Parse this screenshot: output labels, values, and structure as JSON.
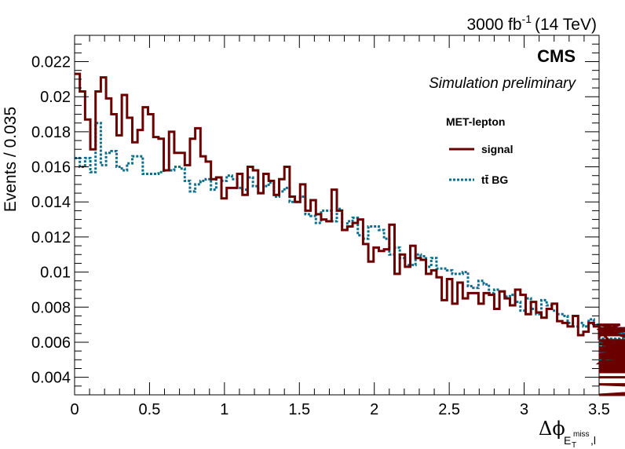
{
  "chart_data": {
    "type": "line",
    "style": "step-histogram",
    "header": {
      "lumi_prefix": "3000 fb",
      "lumi_exp": "-1",
      "energy": "(14 TeV)",
      "experiment": "CMS",
      "status": "Simulation preliminary"
    },
    "ylabel": "Events / 0.035",
    "xlabel": {
      "delta_phi": "Δϕ",
      "sub_main": "E",
      "sub_sub": "T",
      "sub_sup": "miss",
      "sub_tail": ",l"
    },
    "xlim": [
      0,
      3.5
    ],
    "ylim": [
      0.003,
      0.0235
    ],
    "x_ticks": [
      0,
      0.5,
      1,
      1.5,
      2,
      2.5,
      3,
      3.5
    ],
    "x_tick_labels": [
      "0",
      "0.5",
      "1",
      "1.5",
      "2",
      "2.5",
      "3",
      "3.5"
    ],
    "y_ticks": [
      0.004,
      0.006,
      0.008,
      0.01,
      0.012,
      0.014,
      0.016,
      0.018,
      0.02,
      0.022
    ],
    "y_tick_labels": [
      "0.004",
      "0.006",
      "0.008",
      "0.01",
      "0.012",
      "0.014",
      "0.016",
      "0.018",
      "0.02",
      "0.022"
    ],
    "bin_width": 0.035,
    "grid": false,
    "legend": {
      "title": "MET-lepton",
      "position": "top-right",
      "entries": [
        {
          "label": "signal",
          "color": "#6b0000",
          "dash": "solid"
        },
        {
          "label": "tt̄ BG",
          "color": "#0a6e8c",
          "dash": "dotted"
        }
      ]
    },
    "series": [
      {
        "name": "signal",
        "color": "#6b0000",
        "values": [
          0.0213,
          0.0203,
          0.0187,
          0.017,
          0.0203,
          0.0211,
          0.0199,
          0.019,
          0.0178,
          0.0201,
          0.0188,
          0.0174,
          0.0181,
          0.0194,
          0.019,
          0.0177,
          0.0176,
          0.0158,
          0.018,
          0.0168,
          0.0168,
          0.0161,
          0.0176,
          0.0182,
          0.0166,
          0.0163,
          0.0153,
          0.0154,
          0.0142,
          0.0148,
          0.0148,
          0.0156,
          0.0144,
          0.016,
          0.0158,
          0.0145,
          0.0156,
          0.0152,
          0.0144,
          0.0153,
          0.016,
          0.0143,
          0.014,
          0.015,
          0.0135,
          0.0141,
          0.0133,
          0.013,
          0.0129,
          0.0147,
          0.0135,
          0.0124,
          0.0126,
          0.0128,
          0.013,
          0.0116,
          0.0106,
          0.0114,
          0.0112,
          0.0113,
          0.0127,
          0.0099,
          0.011,
          0.0103,
          0.0115,
          0.0108,
          0.0107,
          0.0099,
          0.0101,
          0.0097,
          0.0084,
          0.0096,
          0.0082,
          0.0094,
          0.0085,
          0.0088,
          0.0088,
          0.0082,
          0.0088,
          0.0087,
          0.0079,
          0.0089,
          0.0085,
          0.0081,
          0.009,
          0.0087,
          0.0076,
          0.0083,
          0.0077,
          0.0074,
          0.0079,
          0.0082,
          0.0072,
          0.0071,
          0.0069,
          0.0075,
          0.0064,
          0.0066,
          0.0071,
          0.0069,
          0.0063,
          0.0067,
          0.0065,
          0.0066,
          0.007,
          0.0067,
          0.0048,
          0.0064,
          0.0068,
          0.0059,
          0.0061,
          0.0055,
          0.0059,
          0.0053,
          0.0059,
          0.0057,
          0.0053,
          0.0053,
          0.0048,
          0.0056,
          0.0049,
          0.0052,
          0.0053,
          0.0057,
          0.0045,
          0.0053,
          0.0044,
          0.0048,
          0.0056,
          0.0051,
          0.0052,
          0.0047,
          0.0051,
          0.0048,
          0.0044,
          0.0048,
          0.0047,
          0.0043,
          0.0046,
          0.0044,
          0.0049,
          0.0044,
          0.0045,
          0.0044,
          0.0043,
          0.0051,
          0.0045,
          0.0044,
          0.0046,
          0.0036,
          0.003,
          0.004
        ]
      },
      {
        "name": "tt̄ BG",
        "color": "#0a6e8c",
        "values": [
          0.0165,
          0.016,
          0.0165,
          0.0157,
          0.0185,
          0.0161,
          0.0168,
          0.0169,
          0.016,
          0.0158,
          0.0162,
          0.0166,
          0.0166,
          0.0156,
          0.0156,
          0.0156,
          0.0157,
          0.0158,
          0.0158,
          0.016,
          0.0159,
          0.0152,
          0.0146,
          0.015,
          0.0152,
          0.0153,
          0.0147,
          0.0154,
          0.0152,
          0.0155,
          0.0153,
          0.0148,
          0.0147,
          0.0154,
          0.0149,
          0.0145,
          0.0149,
          0.0151,
          0.0143,
          0.0146,
          0.0148,
          0.014,
          0.014,
          0.0143,
          0.0133,
          0.0132,
          0.0128,
          0.0135,
          0.0135,
          0.0129,
          0.0136,
          0.0124,
          0.0129,
          0.0131,
          0.0121,
          0.0119,
          0.0126,
          0.0126,
          0.0124,
          0.0119,
          0.011,
          0.0114,
          0.0108,
          0.0104,
          0.0104,
          0.011,
          0.0109,
          0.0103,
          0.0108,
          0.0102,
          0.0102,
          0.0101,
          0.0099,
          0.0099,
          0.01,
          0.0092,
          0.0091,
          0.0095,
          0.0093,
          0.0088,
          0.009,
          0.0089,
          0.0086,
          0.0087,
          0.0083,
          0.0078,
          0.0085,
          0.0079,
          0.0076,
          0.0084,
          0.0081,
          0.0078,
          0.0076,
          0.0075,
          0.0071,
          0.0069,
          0.0071,
          0.0069,
          0.0073,
          0.007,
          0.0069,
          0.0067,
          0.0066,
          0.0064,
          0.0064,
          0.0065,
          0.0068,
          0.0061,
          0.0062,
          0.006,
          0.0058,
          0.0061,
          0.0056,
          0.0056,
          0.006,
          0.0056,
          0.0056,
          0.0057,
          0.0053,
          0.0052,
          0.0054,
          0.0055,
          0.0051,
          0.0048,
          0.0054,
          0.0056,
          0.0049,
          0.0051,
          0.0053,
          0.0054,
          0.0052,
          0.005,
          0.0053,
          0.0054,
          0.0051,
          0.0049,
          0.0052,
          0.0049,
          0.005,
          0.0048,
          0.0051,
          0.0047,
          0.0052,
          0.0046,
          0.0047,
          0.0052,
          0.005,
          0.0048,
          0.0055,
          0.005,
          0.005,
          0.006
        ]
      }
    ]
  }
}
